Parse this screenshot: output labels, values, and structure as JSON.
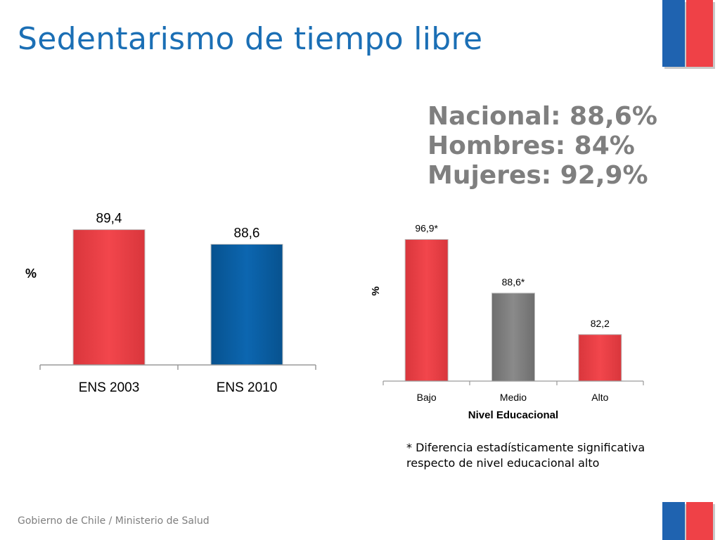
{
  "slide": {
    "title": "Sedentarismo de tiempo libre",
    "footer": "Gobierno de Chile / Ministerio de Salud"
  },
  "stats": {
    "line1": "Nacional: 88,6%",
    "line2": "Hombres: 84%",
    "line3": "Mujeres: 92,9%"
  },
  "footnote": {
    "line1": "* Diferencia estadísticamente significativa",
    "line2": "respecto de  nivel educacional alto"
  },
  "colors": {
    "title": "#1b6fb5",
    "red": "#ef4147",
    "blue": "#0b5fa5",
    "gray": "#808080",
    "flag_blue": "#1f63b0",
    "flag_red": "#ef4147"
  },
  "chart_data": [
    {
      "type": "bar",
      "categories": [
        "ENS 2003",
        "ENS 2010"
      ],
      "values": [
        89.4,
        88.6
      ],
      "labels": [
        "89,4",
        "88,6"
      ],
      "bar_colors": [
        "#ef4147",
        "#0b5fa5"
      ],
      "ylabel": "%",
      "xlabel": "",
      "ylim": [
        82,
        92
      ],
      "grid": false
    },
    {
      "type": "bar",
      "categories": [
        "Bajo",
        "Medio",
        "Alto"
      ],
      "values": [
        96.9,
        88.6,
        82.2
      ],
      "labels": [
        "96,9*",
        "88,6*",
        "82,2"
      ],
      "bar_colors": [
        "#ef4147",
        "#808080",
        "#ef4147"
      ],
      "ylabel": "%",
      "xlabel": "Nivel Educacional",
      "ylim": [
        75,
        100
      ],
      "grid": false
    }
  ]
}
